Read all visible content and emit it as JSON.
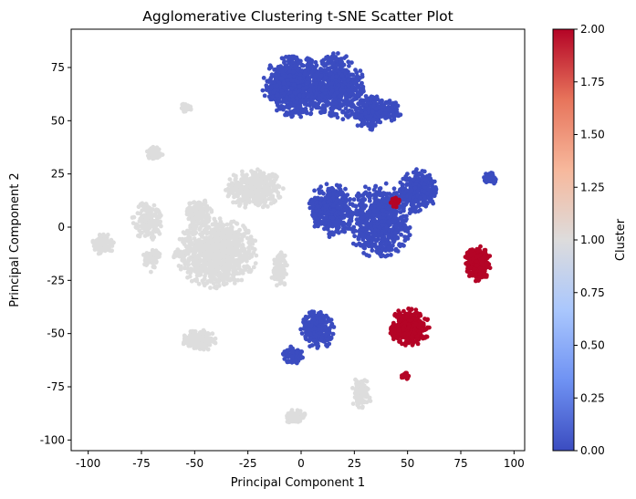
{
  "chart_data": {
    "type": "scatter",
    "title": "Agglomerative Clustering t-SNE Scatter Plot",
    "xlabel": "Principal Component 1",
    "ylabel": "Principal Component 2",
    "xlim": [
      -108,
      105
    ],
    "ylim": [
      -105,
      93
    ],
    "xticks": [
      -100,
      -75,
      -50,
      -25,
      0,
      25,
      50,
      75,
      100
    ],
    "yticks": [
      -100,
      -75,
      -50,
      -25,
      0,
      25,
      50,
      75
    ],
    "grid": false,
    "colormap": "coolwarm",
    "colorbar": {
      "label": "Cluster",
      "range": [
        0.0,
        2.0
      ],
      "ticks": [
        "0.00",
        "0.25",
        "0.50",
        "0.75",
        "1.00",
        "1.25",
        "1.50",
        "1.75",
        "2.00"
      ],
      "colors": [
        "#3b4cc0",
        "#6f92f3",
        "#aac7fd",
        "#dddcdc",
        "#f7b89c",
        "#e7745b",
        "#b40426"
      ]
    },
    "cluster_colors": {
      "0": "#3b4cc0",
      "1": "#dddddd",
      "2": "#b40426"
    },
    "groups": [
      {
        "cluster": 0,
        "cx": -3,
        "cy": 66,
        "rx": 15,
        "ry": 14,
        "n": 700
      },
      {
        "cluster": 0,
        "cx": 17,
        "cy": 66,
        "rx": 12,
        "ry": 15,
        "n": 550
      },
      {
        "cluster": 0,
        "cx": 32,
        "cy": 54,
        "rx": 8,
        "ry": 8,
        "n": 200
      },
      {
        "cluster": 0,
        "cx": 42,
        "cy": 55,
        "rx": 5,
        "ry": 5,
        "n": 70
      },
      {
        "cluster": 0,
        "cx": 14,
        "cy": 8,
        "rx": 10,
        "ry": 13,
        "n": 400
      },
      {
        "cluster": 0,
        "cx": 37,
        "cy": 3,
        "rx": 15,
        "ry": 17,
        "n": 650
      },
      {
        "cluster": 0,
        "cx": 55,
        "cy": 17,
        "rx": 9,
        "ry": 10,
        "n": 280
      },
      {
        "cluster": 0,
        "cx": 89,
        "cy": 23,
        "rx": 3,
        "ry": 3,
        "n": 60
      },
      {
        "cluster": 0,
        "cx": 8,
        "cy": -48,
        "rx": 8,
        "ry": 9,
        "n": 260
      },
      {
        "cluster": 0,
        "cx": -4,
        "cy": -60,
        "rx": 5,
        "ry": 4,
        "n": 90
      },
      {
        "cluster": 2,
        "cx": 83,
        "cy": -17,
        "rx": 6,
        "ry": 8,
        "n": 240
      },
      {
        "cluster": 2,
        "cx": 51,
        "cy": -47,
        "rx": 9,
        "ry": 9,
        "n": 320
      },
      {
        "cluster": 2,
        "cx": 49,
        "cy": -70,
        "rx": 2,
        "ry": 1.5,
        "n": 20
      },
      {
        "cluster": 2,
        "cx": 44,
        "cy": 12,
        "rx": 2,
        "ry": 3,
        "n": 25
      },
      {
        "cluster": 1,
        "cx": -22,
        "cy": 18,
        "rx": 13,
        "ry": 9,
        "n": 380
      },
      {
        "cluster": 1,
        "cx": -40,
        "cy": -12,
        "rx": 19,
        "ry": 16,
        "n": 950
      },
      {
        "cluster": 1,
        "cx": -48,
        "cy": 7,
        "rx": 6,
        "ry": 6,
        "n": 160
      },
      {
        "cluster": 1,
        "cx": -72,
        "cy": 3,
        "rx": 7,
        "ry": 9,
        "n": 160
      },
      {
        "cluster": 1,
        "cx": -70,
        "cy": -15,
        "rx": 4,
        "ry": 6,
        "n": 60
      },
      {
        "cluster": 1,
        "cx": -93,
        "cy": -8,
        "rx": 5,
        "ry": 5,
        "n": 100
      },
      {
        "cluster": 1,
        "cx": -69,
        "cy": 35,
        "rx": 4,
        "ry": 3,
        "n": 70
      },
      {
        "cluster": 1,
        "cx": -54,
        "cy": 56,
        "rx": 3,
        "ry": 2,
        "n": 35
      },
      {
        "cluster": 1,
        "cx": -48,
        "cy": -53,
        "rx": 8,
        "ry": 5,
        "n": 170
      },
      {
        "cluster": 1,
        "cx": -10,
        "cy": -20,
        "rx": 4,
        "ry": 8,
        "n": 110
      },
      {
        "cluster": 1,
        "cx": -3,
        "cy": -89,
        "rx": 5,
        "ry": 3,
        "n": 90
      },
      {
        "cluster": 1,
        "cx": 28,
        "cy": -78,
        "rx": 5,
        "ry": 7,
        "n": 110
      }
    ]
  }
}
